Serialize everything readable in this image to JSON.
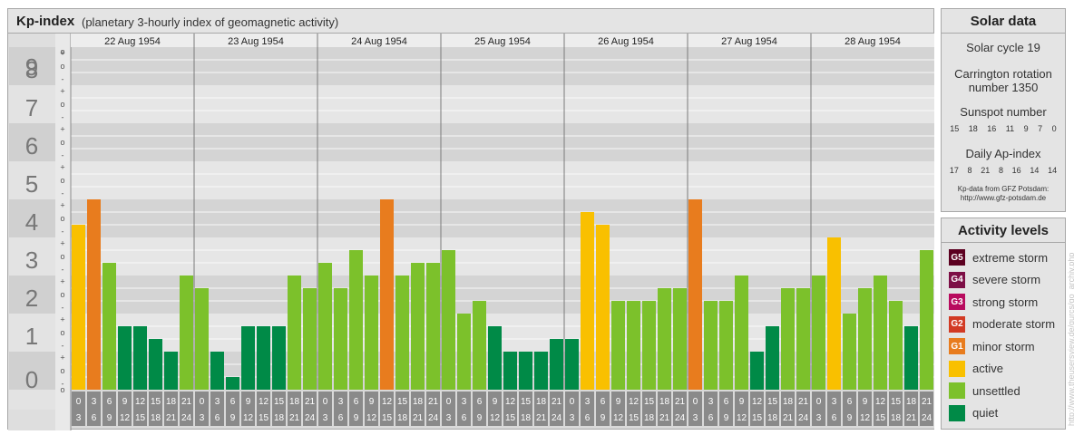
{
  "header": {
    "title": "Kp-index",
    "subtitle": "(planetary 3-hourly index of geomagnetic activity)"
  },
  "chart_data": {
    "type": "bar",
    "title": "Kp-index",
    "ylim": [
      0,
      9
    ],
    "y_ticks": [
      "0",
      "1",
      "2",
      "3",
      "4",
      "5",
      "6",
      "7",
      "8",
      "9"
    ],
    "thirds_labels": [
      "+",
      "o",
      "-"
    ],
    "days": [
      "22 Aug 1954",
      "23 Aug 1954",
      "24 Aug 1954",
      "25 Aug 1954",
      "26 Aug 1954",
      "27 Aug 1954",
      "28 Aug 1954"
    ],
    "interval_labels": [
      [
        "0",
        "3"
      ],
      [
        "3",
        "6"
      ],
      [
        "6",
        "9"
      ],
      [
        "9",
        "12"
      ],
      [
        "12",
        "15"
      ],
      [
        "15",
        "18"
      ],
      [
        "18",
        "21"
      ],
      [
        "21",
        "24"
      ]
    ],
    "values": [
      [
        4.333,
        5.0,
        3.333,
        1.667,
        1.667,
        1.333,
        1.0,
        3.0
      ],
      [
        2.667,
        1.0,
        0.333,
        1.667,
        1.667,
        1.667,
        3.0,
        2.667
      ],
      [
        3.333,
        2.667,
        3.667,
        3.0,
        5.0,
        3.0,
        3.333,
        3.333
      ],
      [
        3.667,
        2.0,
        2.333,
        1.667,
        1.0,
        1.0,
        1.0,
        1.333
      ],
      [
        1.333,
        4.667,
        4.333,
        2.333,
        2.333,
        2.333,
        2.667,
        2.667
      ],
      [
        5.0,
        2.333,
        2.333,
        3.0,
        1.0,
        1.667,
        2.667,
        2.667
      ],
      [
        3.0,
        4.0,
        2.0,
        2.667,
        3.0,
        2.333,
        1.667,
        3.667
      ]
    ],
    "level_colors": {
      "quiet": "#008a47",
      "unsettled": "#7cc12b",
      "active": "#f9c000",
      "minor": "#e87c1e"
    }
  },
  "solar": {
    "title": "Solar data",
    "cycle": "Solar cycle 19",
    "carrington_line1": "Carrington rotation",
    "carrington_line2": "number 1350",
    "sunspot_label": "Sunspot number",
    "sunspot_values": [
      "15",
      "18",
      "16",
      "11",
      "9",
      "7",
      "0"
    ],
    "ap_label": "Daily Ap-index",
    "ap_values": [
      "17",
      "8",
      "21",
      "8",
      "16",
      "14",
      "14"
    ],
    "credit_line1": "Kp-data from GFZ Potsdam:",
    "credit_line2": "http://www.gfz-potsdam.de"
  },
  "activity": {
    "title": "Activity levels",
    "levels": [
      {
        "badge": "G5",
        "label": "extreme storm",
        "color": "#5c0020"
      },
      {
        "badge": "G4",
        "label": "severe storm",
        "color": "#7d0f46"
      },
      {
        "badge": "G3",
        "label": "strong storm",
        "color": "#b80b5e"
      },
      {
        "badge": "G2",
        "label": "moderate storm",
        "color": "#d23a24"
      },
      {
        "badge": "G1",
        "label": "minor storm",
        "color": "#e87c1e"
      },
      {
        "badge": "",
        "label": "active",
        "color": "#f9c000"
      },
      {
        "badge": "",
        "label": "unsettled",
        "color": "#7cc12b"
      },
      {
        "badge": "",
        "label": "quiet",
        "color": "#008a47"
      }
    ]
  },
  "watermark": "http://www.theusersview.de/gurcs/go_archiv.php"
}
